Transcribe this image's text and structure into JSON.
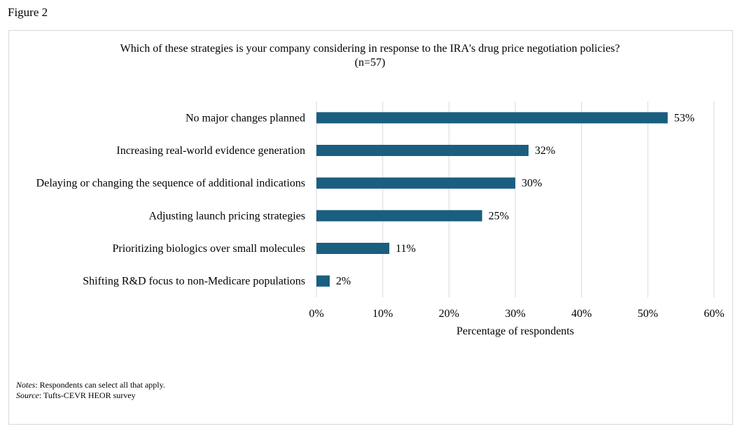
{
  "figure_label": "Figure 2",
  "chart_data": {
    "type": "bar",
    "orientation": "horizontal",
    "title": "Which of these strategies is your company considering in response to the IRA's drug price negotiation policies?",
    "subtitle": "(n=57)",
    "categories": [
      "No major changes planned",
      "Increasing real-world evidence generation",
      "Delaying or changing the sequence of additional indications",
      "Adjusting launch pricing strategies",
      "Prioritizing biologics over small molecules",
      "Shifting R&D focus to non-Medicare populations"
    ],
    "values": [
      53,
      32,
      30,
      25,
      11,
      2
    ],
    "data_labels": [
      "53%",
      "32%",
      "30%",
      "25%",
      "11%",
      "2%"
    ],
    "xlabel": "Percentage of respondents",
    "xlim": [
      0,
      60
    ],
    "xticks": [
      0,
      10,
      20,
      30,
      40,
      50,
      60
    ],
    "xtick_labels": [
      "0%",
      "10%",
      "20%",
      "30%",
      "40%",
      "50%",
      "60%"
    ],
    "grid": "vertical",
    "bar_color": "#1a5e80"
  },
  "notes": {
    "notes_label": "Notes",
    "notes_text": ": Respondents can select all that apply.",
    "source_label": "Source",
    "source_text": ": Tufts-CEVR HEOR survey"
  }
}
